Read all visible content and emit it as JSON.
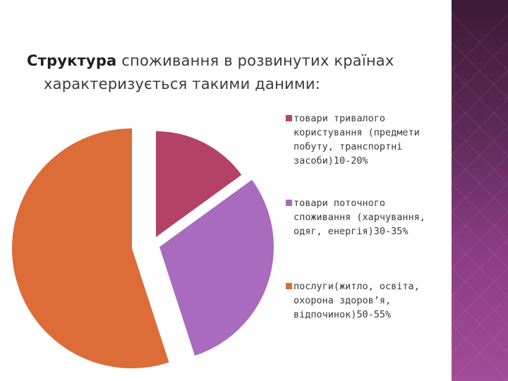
{
  "slide": {
    "title_bold": "Структура",
    "title_rest": " споживання в розвинутих країнах",
    "title_line2": "характеризується такими даними:"
  },
  "colors": {
    "durable": "#b34266",
    "current": "#a96bbd",
    "services": "#dc6c38",
    "deco_bar": "#7a3572"
  },
  "chart_data": {
    "type": "pie",
    "title": "",
    "legend_placement": "right",
    "exploded": true,
    "categories": [
      "товари тривалого користування (предмети побуту, транспортні засоби)10-20%",
      "товари поточного споживання (харчування, одяг, енергія)30-35%",
      "послуги(житло, освіта, охорона здоров’я, відпочинок)50-55%"
    ],
    "values": [
      15,
      30,
      55
    ]
  },
  "legend": {
    "items": [
      {
        "lines": [
          "товари тривалого",
          "користування (предмети",
          "побуту, транспортні",
          "засоби)10-20%"
        ]
      },
      {
        "lines": [
          "товари поточного",
          "споживання (харчування,",
          "одяг, енергія)30-35%"
        ]
      },
      {
        "lines": [
          "послуги(житло, освіта,",
          "охорона здоров’я,",
          "відпочинок)50-55%"
        ]
      }
    ]
  }
}
